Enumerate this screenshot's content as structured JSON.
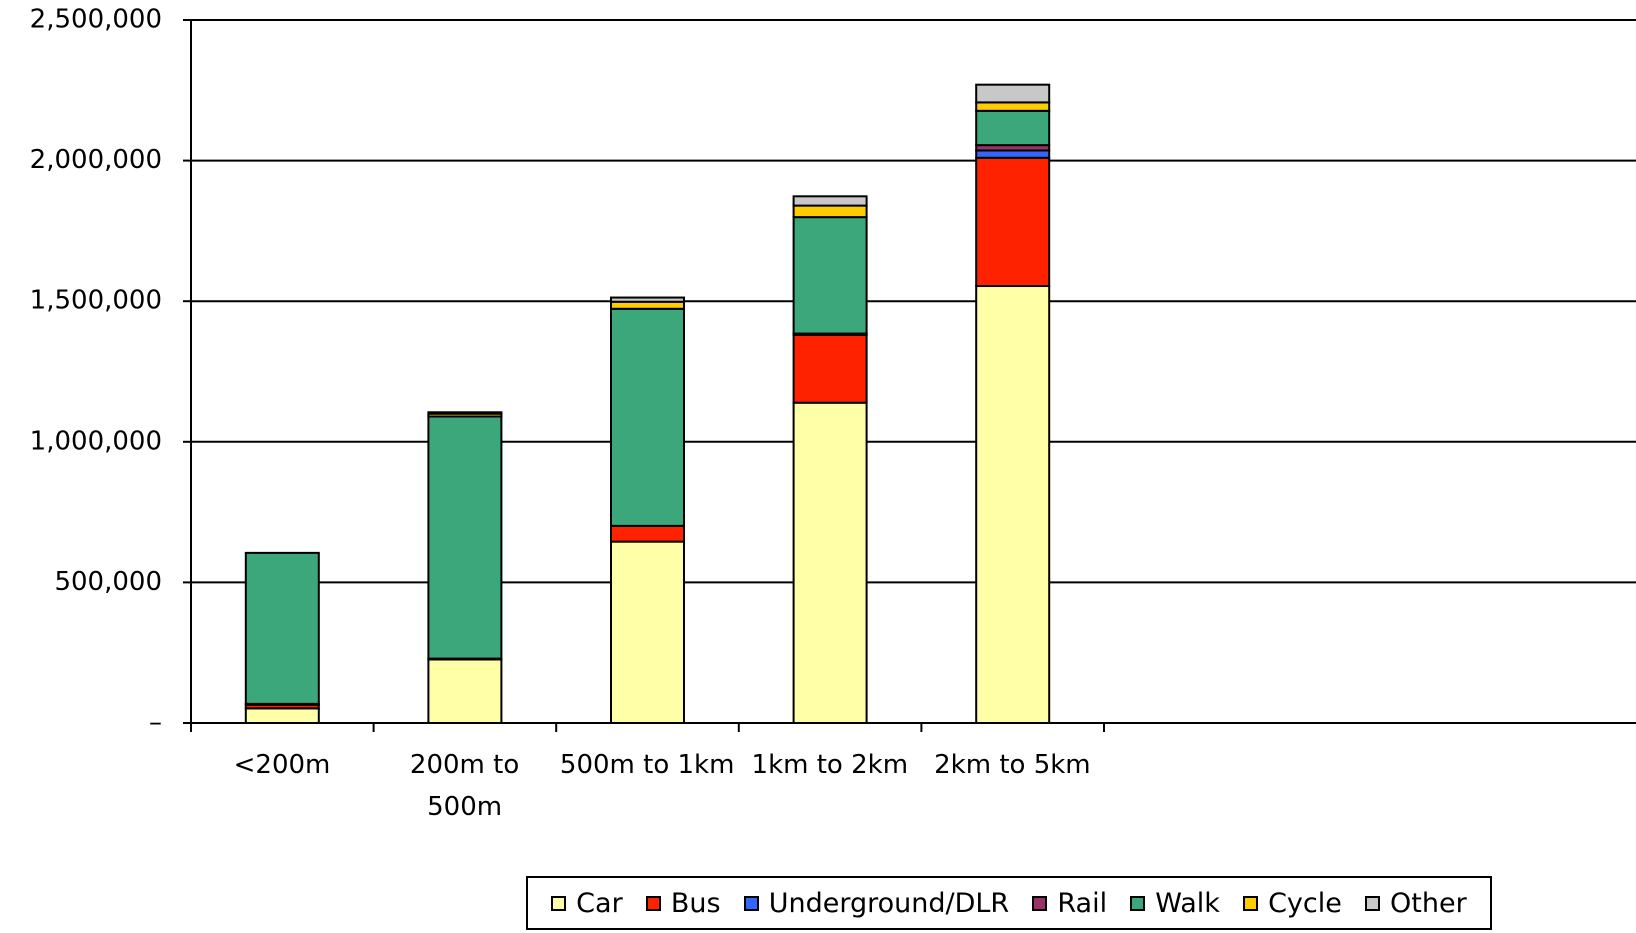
{
  "chart_data": {
    "type": "stacked_bar",
    "categories": [
      "<200m",
      "200m to 500m",
      "500m to 1km",
      "1km to 2km",
      "2km to 5km"
    ],
    "series": [
      {
        "name": "Car",
        "color": "#ffffa8",
        "values": [
          52000,
          226000,
          645000,
          1139000,
          1554000
        ]
      },
      {
        "name": "Bus",
        "color": "#ff2200",
        "values": [
          13000,
          3000,
          56000,
          241000,
          456000
        ]
      },
      {
        "name": "Underground/DLR",
        "color": "#3366ff",
        "values": [
          0,
          0,
          0,
          3000,
          26000
        ]
      },
      {
        "name": "Rail",
        "color": "#993366",
        "values": [
          3000,
          0,
          0,
          2000,
          19000
        ]
      },
      {
        "name": "Walk",
        "color": "#3ca77a",
        "values": [
          537000,
          861000,
          772000,
          414000,
          122000
        ]
      },
      {
        "name": "Cycle",
        "color": "#ffcc00",
        "values": [
          0,
          10000,
          25000,
          41000,
          30000
        ]
      },
      {
        "name": "Other",
        "color": "#c8c8c8",
        "values": [
          0,
          5000,
          15000,
          33000,
          63000
        ]
      }
    ],
    "ylim": [
      0,
      2500000
    ],
    "yticks": [
      {
        "value": 0,
        "label": "–"
      },
      {
        "value": 500000,
        "label": "500,000"
      },
      {
        "value": 1000000,
        "label": "1,000,000"
      },
      {
        "value": 1500000,
        "label": "1,500,000"
      },
      {
        "value": 2000000,
        "label": "2,000,000"
      },
      {
        "value": 2500000,
        "label": "2,500,000"
      }
    ],
    "grid": true,
    "legend": "bottom"
  }
}
